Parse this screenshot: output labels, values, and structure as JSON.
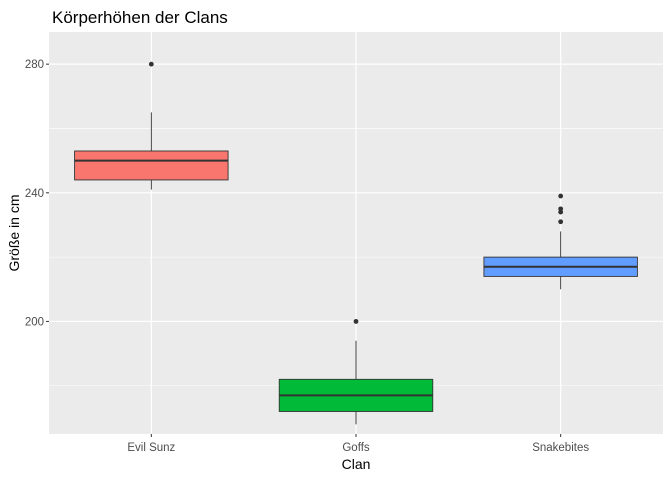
{
  "chart_data": {
    "type": "boxplot",
    "title": "Körperhöhen der Clans",
    "xlabel": "Clan",
    "ylabel": "Größe in cm",
    "categories": [
      "Evil Sunz",
      "Goffs",
      "Snakebites"
    ],
    "ylim": [
      165,
      290
    ],
    "yticks": [
      200,
      240,
      280
    ],
    "grid": true,
    "legend": "none",
    "boxes": [
      {
        "category": "Evil Sunz",
        "whisker_low": 241,
        "q1": 244,
        "median": 250,
        "q3": 253,
        "whisker_high": 265,
        "outliers": [
          280
        ],
        "color": "#F8766D"
      },
      {
        "category": "Goffs",
        "whisker_low": 168,
        "q1": 172,
        "median": 177,
        "q3": 182,
        "whisker_high": 194,
        "outliers": [
          200
        ],
        "color": "#00BA38"
      },
      {
        "category": "Snakebites",
        "whisker_low": 210,
        "q1": 214,
        "median": 217,
        "q3": 220,
        "whisker_high": 228,
        "outliers": [
          231,
          234,
          235,
          239
        ],
        "color": "#619CFF"
      }
    ]
  },
  "colors": {
    "panel_background": "#EBEBEB",
    "grid_major": "#FFFFFF",
    "box_outline": "#333333",
    "outlier": "#333333"
  }
}
